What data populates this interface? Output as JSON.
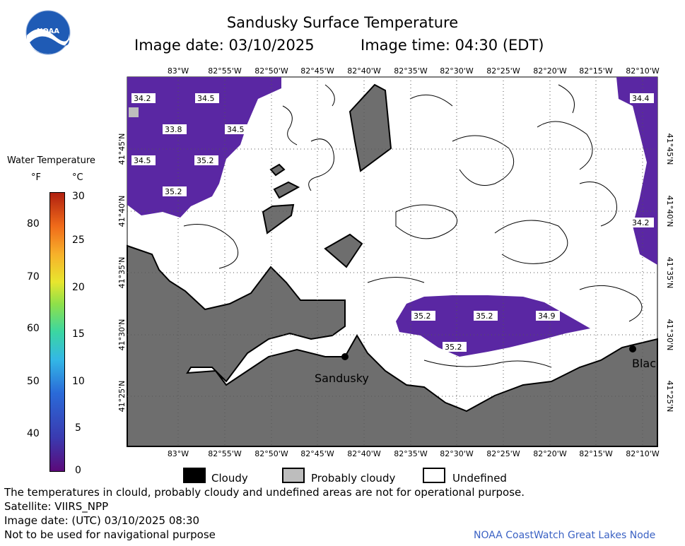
{
  "header": {
    "title": "Sandusky Surface Temperature",
    "image_date": "Image date: 03/10/2025",
    "image_time": "Image time: 04:30 (EDT)"
  },
  "logo": {
    "label": "NOAA",
    "icon": "noaa-logo"
  },
  "legend": {
    "title": "Water Temperature",
    "f_unit": "°F",
    "c_unit": "°C",
    "f_ticks": [
      "80",
      "70",
      "60",
      "50",
      "40"
    ],
    "c_ticks": [
      "30",
      "25",
      "20",
      "15",
      "10",
      "5",
      "0"
    ]
  },
  "map": {
    "lon_labels": [
      "83°W",
      "82°55'W",
      "82°50'W",
      "82°45'W",
      "82°40'W",
      "82°35'W",
      "82°30'W",
      "82°25'W",
      "82°20'W",
      "82°15'W",
      "82°10'W"
    ],
    "lat_labels": [
      "41°45'N",
      "41°40'N",
      "41°35'N",
      "41°30'N",
      "41°25'N"
    ],
    "cities": [
      {
        "name": "Sandusky"
      },
      {
        "name": "Blac"
      }
    ],
    "temperature_labels": [
      {
        "value": "34.2"
      },
      {
        "value": "34.5"
      },
      {
        "value": "33.8"
      },
      {
        "value": "34.5"
      },
      {
        "value": "34.5"
      },
      {
        "value": "35.2"
      },
      {
        "value": "35.2"
      },
      {
        "value": "34.4"
      },
      {
        "value": "34.2"
      },
      {
        "value": "35.2"
      },
      {
        "value": "35.2"
      },
      {
        "value": "34.9"
      },
      {
        "value": "35.2"
      }
    ],
    "colors": {
      "land": "#6e6e6e",
      "water_cold": "#5a27a3",
      "grid": "#555555"
    }
  },
  "key": {
    "cloudy": "Cloudy",
    "probably_cloudy": "Probably cloudy",
    "undefined": "Undefined"
  },
  "footer": {
    "disclaimer": "The temperatures in clould, probably cloudy and undefined areas are not for operational purpose.",
    "satellite": "Satellite: VIIRS_NPP",
    "utc_date": "Image date: (UTC) 03/10/2025  08:30",
    "nav": "Not to be used for navigational purpose",
    "node": "NOAA CoastWatch Great Lakes Node"
  }
}
